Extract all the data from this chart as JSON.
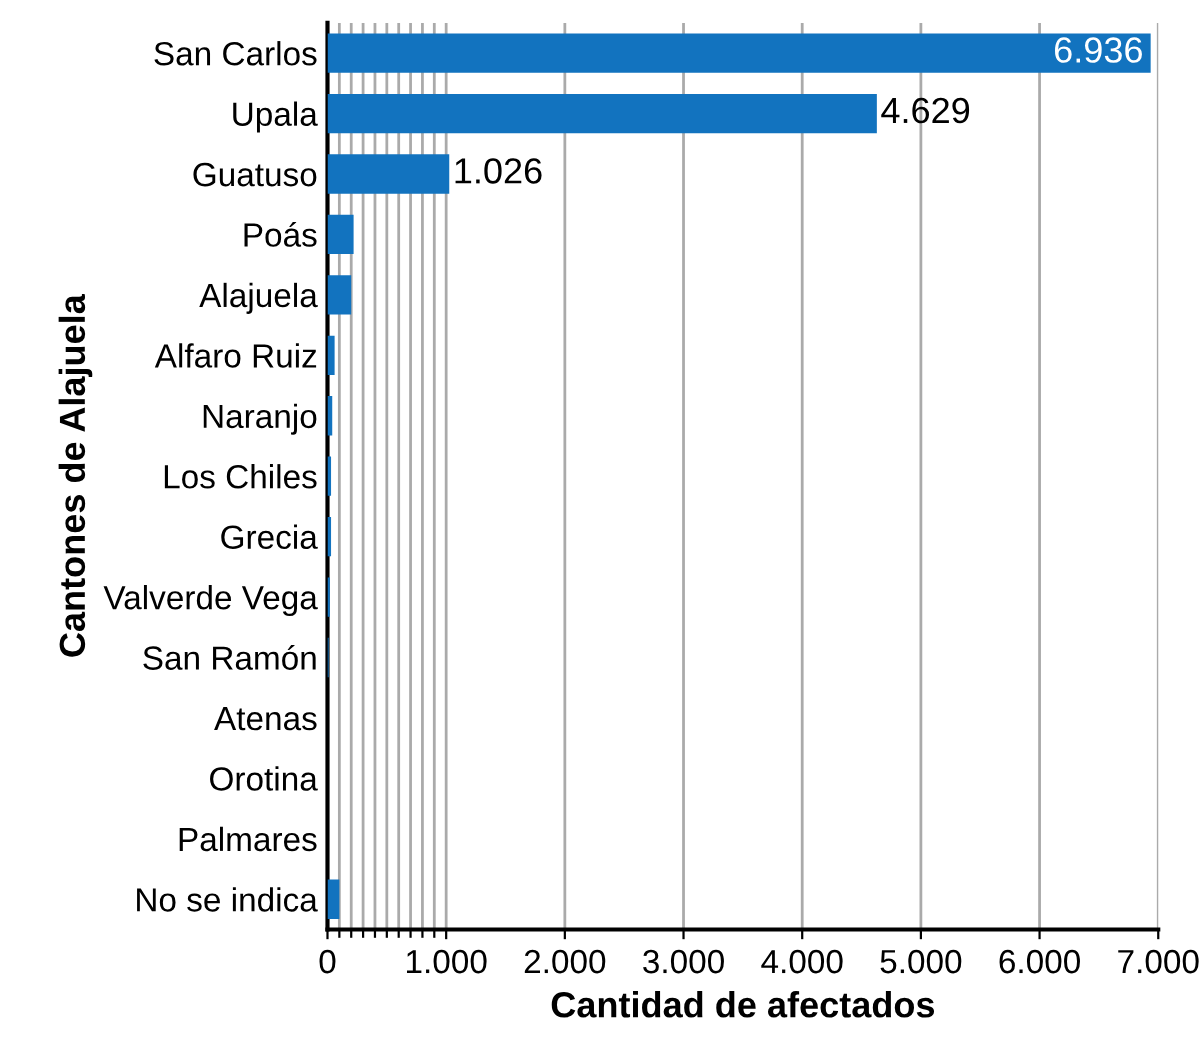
{
  "chart_data": {
    "type": "bar",
    "orientation": "horizontal",
    "xlabel": "Cantidad de afectados",
    "ylabel": "Cantones de Alajuela",
    "categories": [
      "San Carlos",
      "Upala",
      "Guatuso",
      "Poás",
      "Alajuela",
      "Alfaro Ruiz",
      "Naranjo",
      "Los Chiles",
      "Grecia",
      "Valverde Vega",
      "San Ramón",
      "Atenas",
      "Orotina",
      "Palmares",
      "No se indica"
    ],
    "values": [
      6936,
      4629,
      1026,
      220,
      200,
      60,
      40,
      30,
      30,
      20,
      10,
      null,
      null,
      null,
      100
    ],
    "value_labels": [
      "6.936",
      "4.629",
      "1.026",
      null,
      null,
      null,
      null,
      null,
      null,
      null,
      null,
      null,
      null,
      null,
      null
    ],
    "color": "#1273bf",
    "xlim": [
      0,
      7000
    ],
    "xticks": [
      0,
      {
        "value": 100,
        "label": null
      },
      {
        "value": 200,
        "label": null
      },
      {
        "value": 300,
        "label": null
      },
      {
        "value": 400,
        "label": null
      },
      {
        "value": 500,
        "label": null
      },
      {
        "value": 600,
        "label": null
      },
      {
        "value": 700,
        "label": null
      },
      {
        "value": 800,
        "label": null
      },
      {
        "value": 900,
        "label": null
      },
      {
        "value": 1000,
        "label": "1.000"
      },
      {
        "value": 2000,
        "label": "2.000"
      },
      {
        "value": 3000,
        "label": "3.000"
      },
      {
        "value": 4000,
        "label": "4.000"
      },
      {
        "value": 5000,
        "label": "5.000"
      },
      {
        "value": 6000,
        "label": "6.000"
      },
      {
        "value": 7000,
        "label": "7.000"
      }
    ],
    "grid": "x"
  }
}
